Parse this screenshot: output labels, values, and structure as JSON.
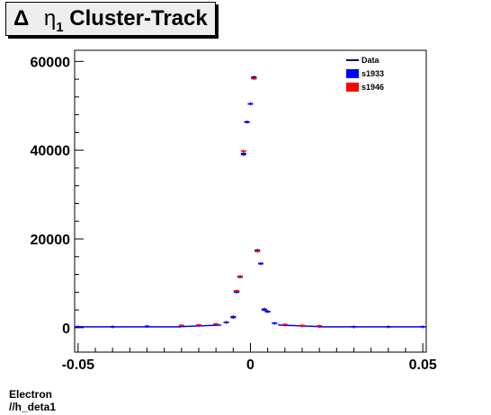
{
  "chart_data": {
    "type": "scatter",
    "title": "Δ η1 Cluster-Track",
    "title_parts": {
      "delta": "Δ",
      "eta": "η",
      "sub": "1",
      "rest": "Cluster-Track"
    },
    "xlim": [
      -0.051,
      0.051
    ],
    "ylim": [
      -5500,
      62500
    ],
    "x_ticks": [
      -0.05,
      0,
      0.05
    ],
    "x_tick_labels": [
      "-0.05",
      "0",
      "0.05"
    ],
    "y_ticks": [
      0,
      20000,
      40000,
      60000
    ],
    "y_tick_labels": [
      "0",
      "20000",
      "40000",
      "60000"
    ],
    "grid": false,
    "legend_position": "top-right",
    "legend": [
      {
        "label": "Data",
        "color": "#00007f",
        "style": "line"
      },
      {
        "label": "s1933",
        "color": "#0000ff",
        "style": "box"
      },
      {
        "label": "s1946",
        "color": "#ff0000",
        "style": "box"
      }
    ],
    "series": [
      {
        "name": "Data",
        "color": "#00007f",
        "x": [
          -0.05,
          -0.04,
          -0.03,
          -0.02,
          -0.015,
          -0.01,
          -0.007,
          -0.005,
          -0.004,
          -0.003,
          -0.002,
          -0.001,
          0,
          0.001,
          0.002,
          0.003,
          0.004,
          0.005,
          0.007,
          0.01,
          0.015,
          0.02,
          0.03,
          0.04,
          0.05
        ],
        "y": [
          200,
          200,
          300,
          400,
          500,
          700,
          1200,
          2500,
          8200,
          11500,
          39300,
          46400,
          50500,
          56500,
          17500,
          14500,
          4200,
          3700,
          1000,
          600,
          400,
          300,
          200,
          200,
          200
        ]
      },
      {
        "name": "s1933",
        "color": "#0000ff",
        "x": [
          -0.05,
          -0.04,
          -0.03,
          -0.02,
          -0.015,
          -0.01,
          -0.007,
          -0.005,
          -0.004,
          -0.003,
          -0.002,
          -0.001,
          0,
          0.001,
          0.002,
          0.003,
          0.004,
          0.005,
          0.007,
          0.01,
          0.015,
          0.02,
          0.03,
          0.04,
          0.05
        ],
        "y": [
          200,
          200,
          300,
          400,
          500,
          700,
          1200,
          2300,
          8000,
          11400,
          39000,
          46300,
          50400,
          56300,
          17300,
          14400,
          4000,
          3600,
          1000,
          600,
          400,
          300,
          200,
          200,
          200
        ]
      },
      {
        "name": "s1946",
        "color": "#ff0000",
        "x": [
          -0.02,
          -0.015,
          -0.01,
          -0.004,
          -0.003,
          -0.002,
          0.001,
          0.002,
          0.01,
          0.015,
          0.02
        ],
        "y": [
          500,
          600,
          800,
          8300,
          11600,
          39800,
          56100,
          17200,
          700,
          500,
          400
        ]
      }
    ]
  },
  "footer": {
    "line1": "Electron",
    "line2": "//h_deta1"
  }
}
